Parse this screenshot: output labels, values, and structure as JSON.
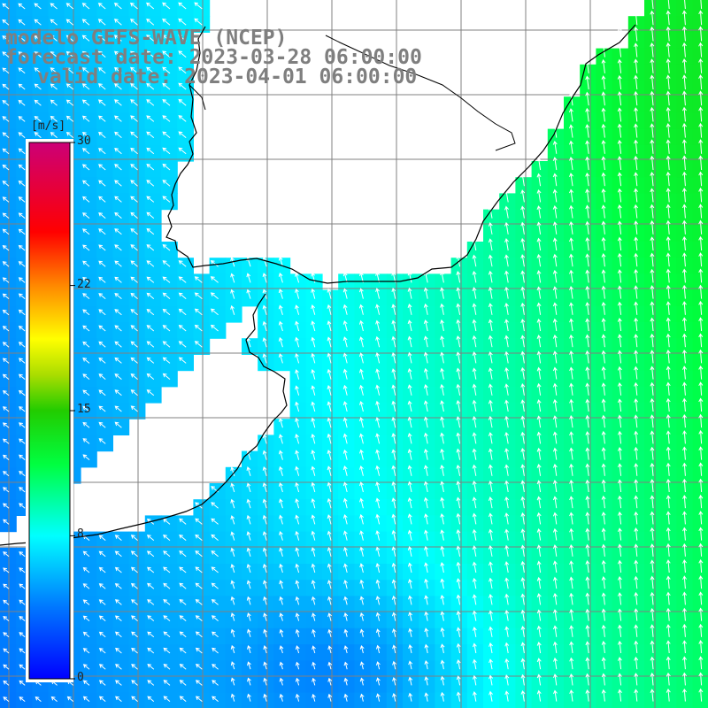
{
  "header": {
    "model": "modelo GEFS-WAVE (NCEP)",
    "forecast": "forecast date: 2023-03-28 06:00:00",
    "valid": "valid date: 2023-04-01 06:00:00"
  },
  "colorbar": {
    "unit": "[m/s]",
    "ticks": [
      {
        "label": "30",
        "value": 30
      },
      {
        "label": "22",
        "value": 22
      },
      {
        "label": "15",
        "value": 15
      },
      {
        "label": "8",
        "value": 8
      },
      {
        "label": "0",
        "value": 0
      }
    ],
    "stops": [
      {
        "v": 0,
        "c": "#0000ff"
      },
      {
        "v": 4,
        "c": "#0077ff"
      },
      {
        "v": 8,
        "c": "#00ffff"
      },
      {
        "v": 12,
        "c": "#00ff40"
      },
      {
        "v": 15,
        "c": "#22cc00"
      },
      {
        "v": 17,
        "c": "#aadd00"
      },
      {
        "v": 19,
        "c": "#ffff00"
      },
      {
        "v": 22,
        "c": "#ff8800"
      },
      {
        "v": 25,
        "c": "#ff0000"
      },
      {
        "v": 30,
        "c": "#cc0077"
      }
    ]
  },
  "colors": {
    "land": "#ffffff",
    "coastline": "#000000",
    "grid": "#808080",
    "arrows": "#ffffff"
  }
}
